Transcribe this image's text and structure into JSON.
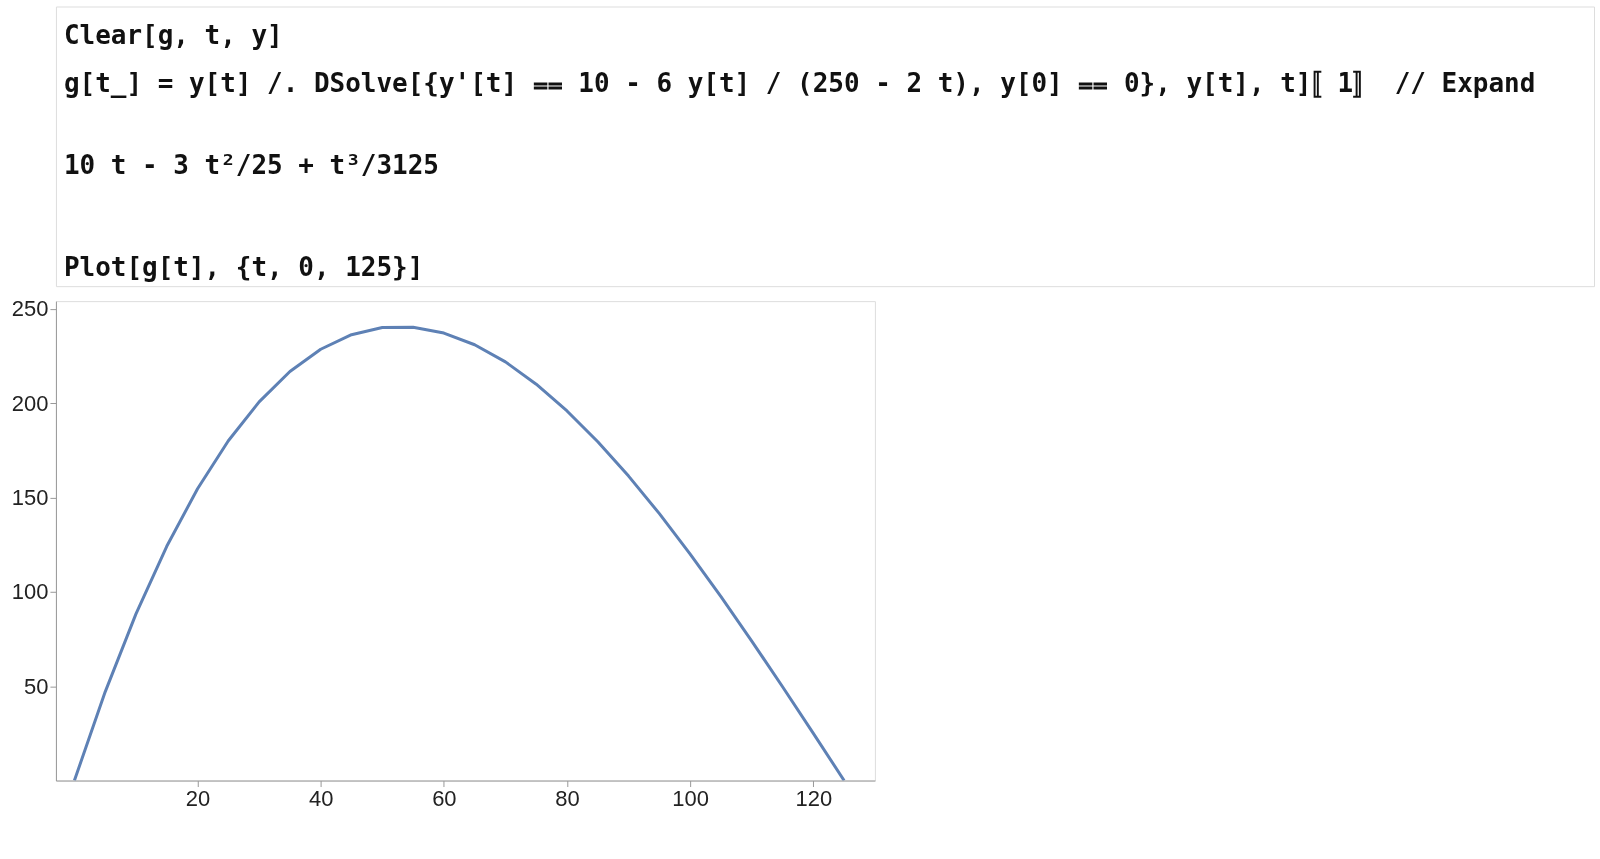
{
  "chart_data": {
    "type": "line",
    "annotations": [
      "Clear[g, t, y]",
      "g[t_] = y[t] /. DSolve[{y'[t] ⩵ 10 - 6 y[t] / (250 - 2 t), y[0] ⩵ 0}, y[t], t]〚1〛 // Expand",
      "10 t - 3 t²/25 + t³/3125",
      "Plot[g[t], {t, 0, 125}]"
    ],
    "x": [
      0,
      5,
      10,
      15,
      20,
      25,
      30,
      35,
      40,
      45,
      50,
      55,
      60,
      65,
      70,
      75,
      80,
      85,
      90,
      95,
      100,
      105,
      110,
      115,
      120,
      125
    ],
    "series": [
      {
        "color": "#5e81b5",
        "values": [
          0,
          47.0,
          88.3,
          124.1,
          154.6,
          180.0,
          200.6,
          216.7,
          228.5,
          236.2,
          240.0,
          240.2,
          237.1,
          230.9,
          221.8,
          210.0,
          195.8,
          179.5,
          161.3,
          141.4,
          120.0,
          97.4,
          73.9,
          49.7,
          25.0,
          0
        ]
      }
    ],
    "xlim": [
      -3,
      130
    ],
    "ylim": [
      0,
      254
    ],
    "xticks": [
      20,
      40,
      60,
      80,
      100,
      120
    ],
    "yticks": [
      50,
      100,
      150,
      200,
      250
    ],
    "grid": false,
    "marker": "none",
    "line_style": "solid"
  }
}
